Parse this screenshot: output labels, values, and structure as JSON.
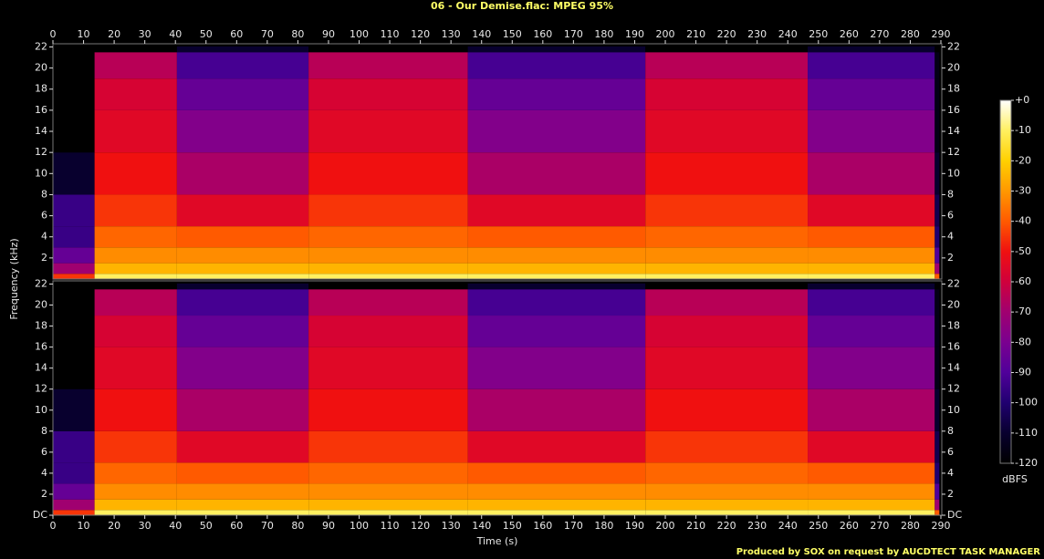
{
  "title": "06 - Our Demise.flac: MPEG 95%",
  "footer": "Produced by SOX on request by AUCDTECT TASK MANAGER",
  "xlabel": "Time (s)",
  "ylabel": "Frequency (kHz)",
  "colorbar": {
    "label": "dBFS",
    "lim": [
      -120,
      0
    ],
    "ticks": [
      {
        "value": 0,
        "label": "+0"
      },
      -10,
      -20,
      -30,
      -40,
      -50,
      -60,
      -70,
      -80,
      -90,
      -100,
      -110,
      -120
    ],
    "colors": [
      "#ffffff",
      "#fff060",
      "#ffd000",
      "#ff9800",
      "#ff5a00",
      "#f01010",
      "#d0003c",
      "#a00070",
      "#7a0090",
      "#50009a",
      "#200070",
      "#08002e",
      "#000000"
    ]
  },
  "chart_data": [
    {
      "type": "spectrogram",
      "xlim": [
        0,
        290.3
      ],
      "ylim": [
        0,
        22.3
      ],
      "xticks": [
        0,
        10,
        20,
        30,
        40,
        50,
        60,
        70,
        80,
        90,
        100,
        110,
        120,
        130,
        140,
        150,
        160,
        170,
        180,
        190,
        200,
        210,
        220,
        230,
        240,
        250,
        260,
        270,
        280,
        290
      ],
      "yticks": [
        2,
        4,
        6,
        8,
        10,
        12,
        14,
        16,
        18,
        20,
        22
      ],
      "frequencies": [
        0,
        0.5,
        1.5,
        3,
        5,
        8,
        12,
        16,
        19,
        21.5,
        22.05
      ],
      "segments": [
        {
          "start": 0,
          "end": 13.6,
          "levels": [
            -45,
            -70,
            -85,
            -95,
            -95,
            -110,
            -120,
            -120,
            -120,
            -120
          ]
        },
        {
          "start": 13.6,
          "end": 40.5,
          "levels": [
            -10,
            -25,
            -32,
            -38,
            -45,
            -50,
            -55,
            -58,
            -65,
            -120
          ]
        },
        {
          "start": 40.5,
          "end": 83.5,
          "levels": [
            -10,
            -25,
            -32,
            -40,
            -55,
            -68,
            -78,
            -85,
            -92,
            -110
          ]
        },
        {
          "start": 83.5,
          "end": 135.5,
          "levels": [
            -10,
            -25,
            -32,
            -38,
            -45,
            -50,
            -55,
            -58,
            -65,
            -120
          ]
        },
        {
          "start": 135.5,
          "end": 193.5,
          "levels": [
            -10,
            -25,
            -32,
            -40,
            -55,
            -68,
            -78,
            -85,
            -92,
            -110
          ]
        },
        {
          "start": 193.5,
          "end": 246.5,
          "levels": [
            -10,
            -25,
            -32,
            -38,
            -45,
            -50,
            -55,
            -58,
            -65,
            -120
          ]
        },
        {
          "start": 246.5,
          "end": 288,
          "levels": [
            -10,
            -25,
            -32,
            -40,
            -55,
            -68,
            -78,
            -85,
            -92,
            -110
          ]
        },
        {
          "start": 288,
          "end": 289.5,
          "levels": [
            -40,
            -70,
            -90,
            -100,
            -105,
            -110,
            -115,
            -115,
            -115,
            -120
          ]
        }
      ]
    },
    {
      "type": "spectrogram",
      "xlim": [
        0,
        290.3
      ],
      "ylim": [
        0,
        22.3
      ],
      "xticks": [
        0,
        10,
        20,
        30,
        40,
        50,
        60,
        70,
        80,
        90,
        100,
        110,
        120,
        130,
        140,
        150,
        160,
        170,
        180,
        190,
        200,
        210,
        220,
        230,
        240,
        250,
        260,
        270,
        280,
        290
      ],
      "yticks": [
        {
          "value": 0,
          "label": "DC"
        },
        2,
        4,
        6,
        8,
        10,
        12,
        14,
        16,
        18,
        20,
        22
      ],
      "frequencies": [
        0,
        0.5,
        1.5,
        3,
        5,
        8,
        12,
        16,
        19,
        21.5,
        22.05
      ],
      "segments": [
        {
          "start": 0,
          "end": 13.6,
          "levels": [
            -45,
            -70,
            -85,
            -95,
            -95,
            -110,
            -120,
            -120,
            -120,
            -120
          ]
        },
        {
          "start": 13.6,
          "end": 40.5,
          "levels": [
            -10,
            -25,
            -32,
            -38,
            -45,
            -50,
            -55,
            -58,
            -65,
            -120
          ]
        },
        {
          "start": 40.5,
          "end": 83.5,
          "levels": [
            -10,
            -25,
            -32,
            -40,
            -55,
            -68,
            -78,
            -85,
            -92,
            -110
          ]
        },
        {
          "start": 83.5,
          "end": 135.5,
          "levels": [
            -10,
            -25,
            -32,
            -38,
            -45,
            -50,
            -55,
            -58,
            -65,
            -120
          ]
        },
        {
          "start": 135.5,
          "end": 193.5,
          "levels": [
            -10,
            -25,
            -32,
            -40,
            -55,
            -68,
            -78,
            -85,
            -92,
            -110
          ]
        },
        {
          "start": 193.5,
          "end": 246.5,
          "levels": [
            -10,
            -25,
            -32,
            -38,
            -45,
            -50,
            -55,
            -58,
            -65,
            -120
          ]
        },
        {
          "start": 246.5,
          "end": 288,
          "levels": [
            -10,
            -25,
            -32,
            -40,
            -55,
            -68,
            -78,
            -85,
            -92,
            -110
          ]
        },
        {
          "start": 288,
          "end": 289.5,
          "levels": [
            -40,
            -70,
            -90,
            -100,
            -105,
            -110,
            -115,
            -115,
            -115,
            -120
          ]
        }
      ]
    }
  ]
}
